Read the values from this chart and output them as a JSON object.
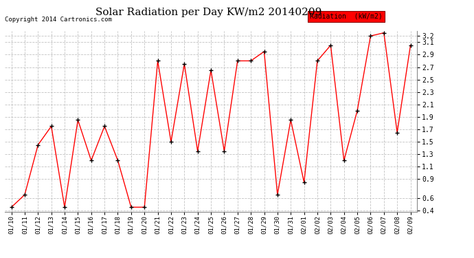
{
  "title": "Solar Radiation per Day KW/m2 20140209",
  "copyright": "Copyright 2014 Cartronics.com",
  "legend_label": "Radiation  (kW/m2)",
  "background_color": "#ffffff",
  "line_color": "red",
  "marker_color": "black",
  "grid_color": "#bbbbbb",
  "title_fontsize": 11,
  "ylim": [
    0.38,
    3.28
  ],
  "dates": [
    "01/10",
    "01/11",
    "01/12",
    "01/13",
    "01/14",
    "01/15",
    "01/16",
    "01/17",
    "01/18",
    "01/19",
    "01/20",
    "01/21",
    "01/22",
    "01/23",
    "01/24",
    "01/25",
    "01/26",
    "01/27",
    "01/28",
    "01/29",
    "01/30",
    "01/31",
    "02/01",
    "02/02",
    "02/03",
    "02/04",
    "02/05",
    "02/06",
    "02/07",
    "02/08",
    "02/09"
  ],
  "values": [
    0.45,
    0.65,
    1.45,
    1.75,
    0.45,
    1.85,
    1.2,
    1.75,
    1.2,
    0.45,
    0.45,
    2.8,
    1.5,
    2.75,
    1.35,
    2.65,
    1.35,
    2.8,
    2.8,
    2.95,
    0.65,
    1.85,
    0.85,
    2.8,
    3.05,
    1.2,
    2.0,
    3.2,
    3.25,
    1.65,
    3.05
  ],
  "yticks": [
    0.4,
    0.6,
    0.9,
    1.1,
    1.3,
    1.5,
    1.7,
    1.9,
    2.1,
    2.3,
    2.5,
    2.7,
    2.9,
    3.1,
    3.2
  ]
}
